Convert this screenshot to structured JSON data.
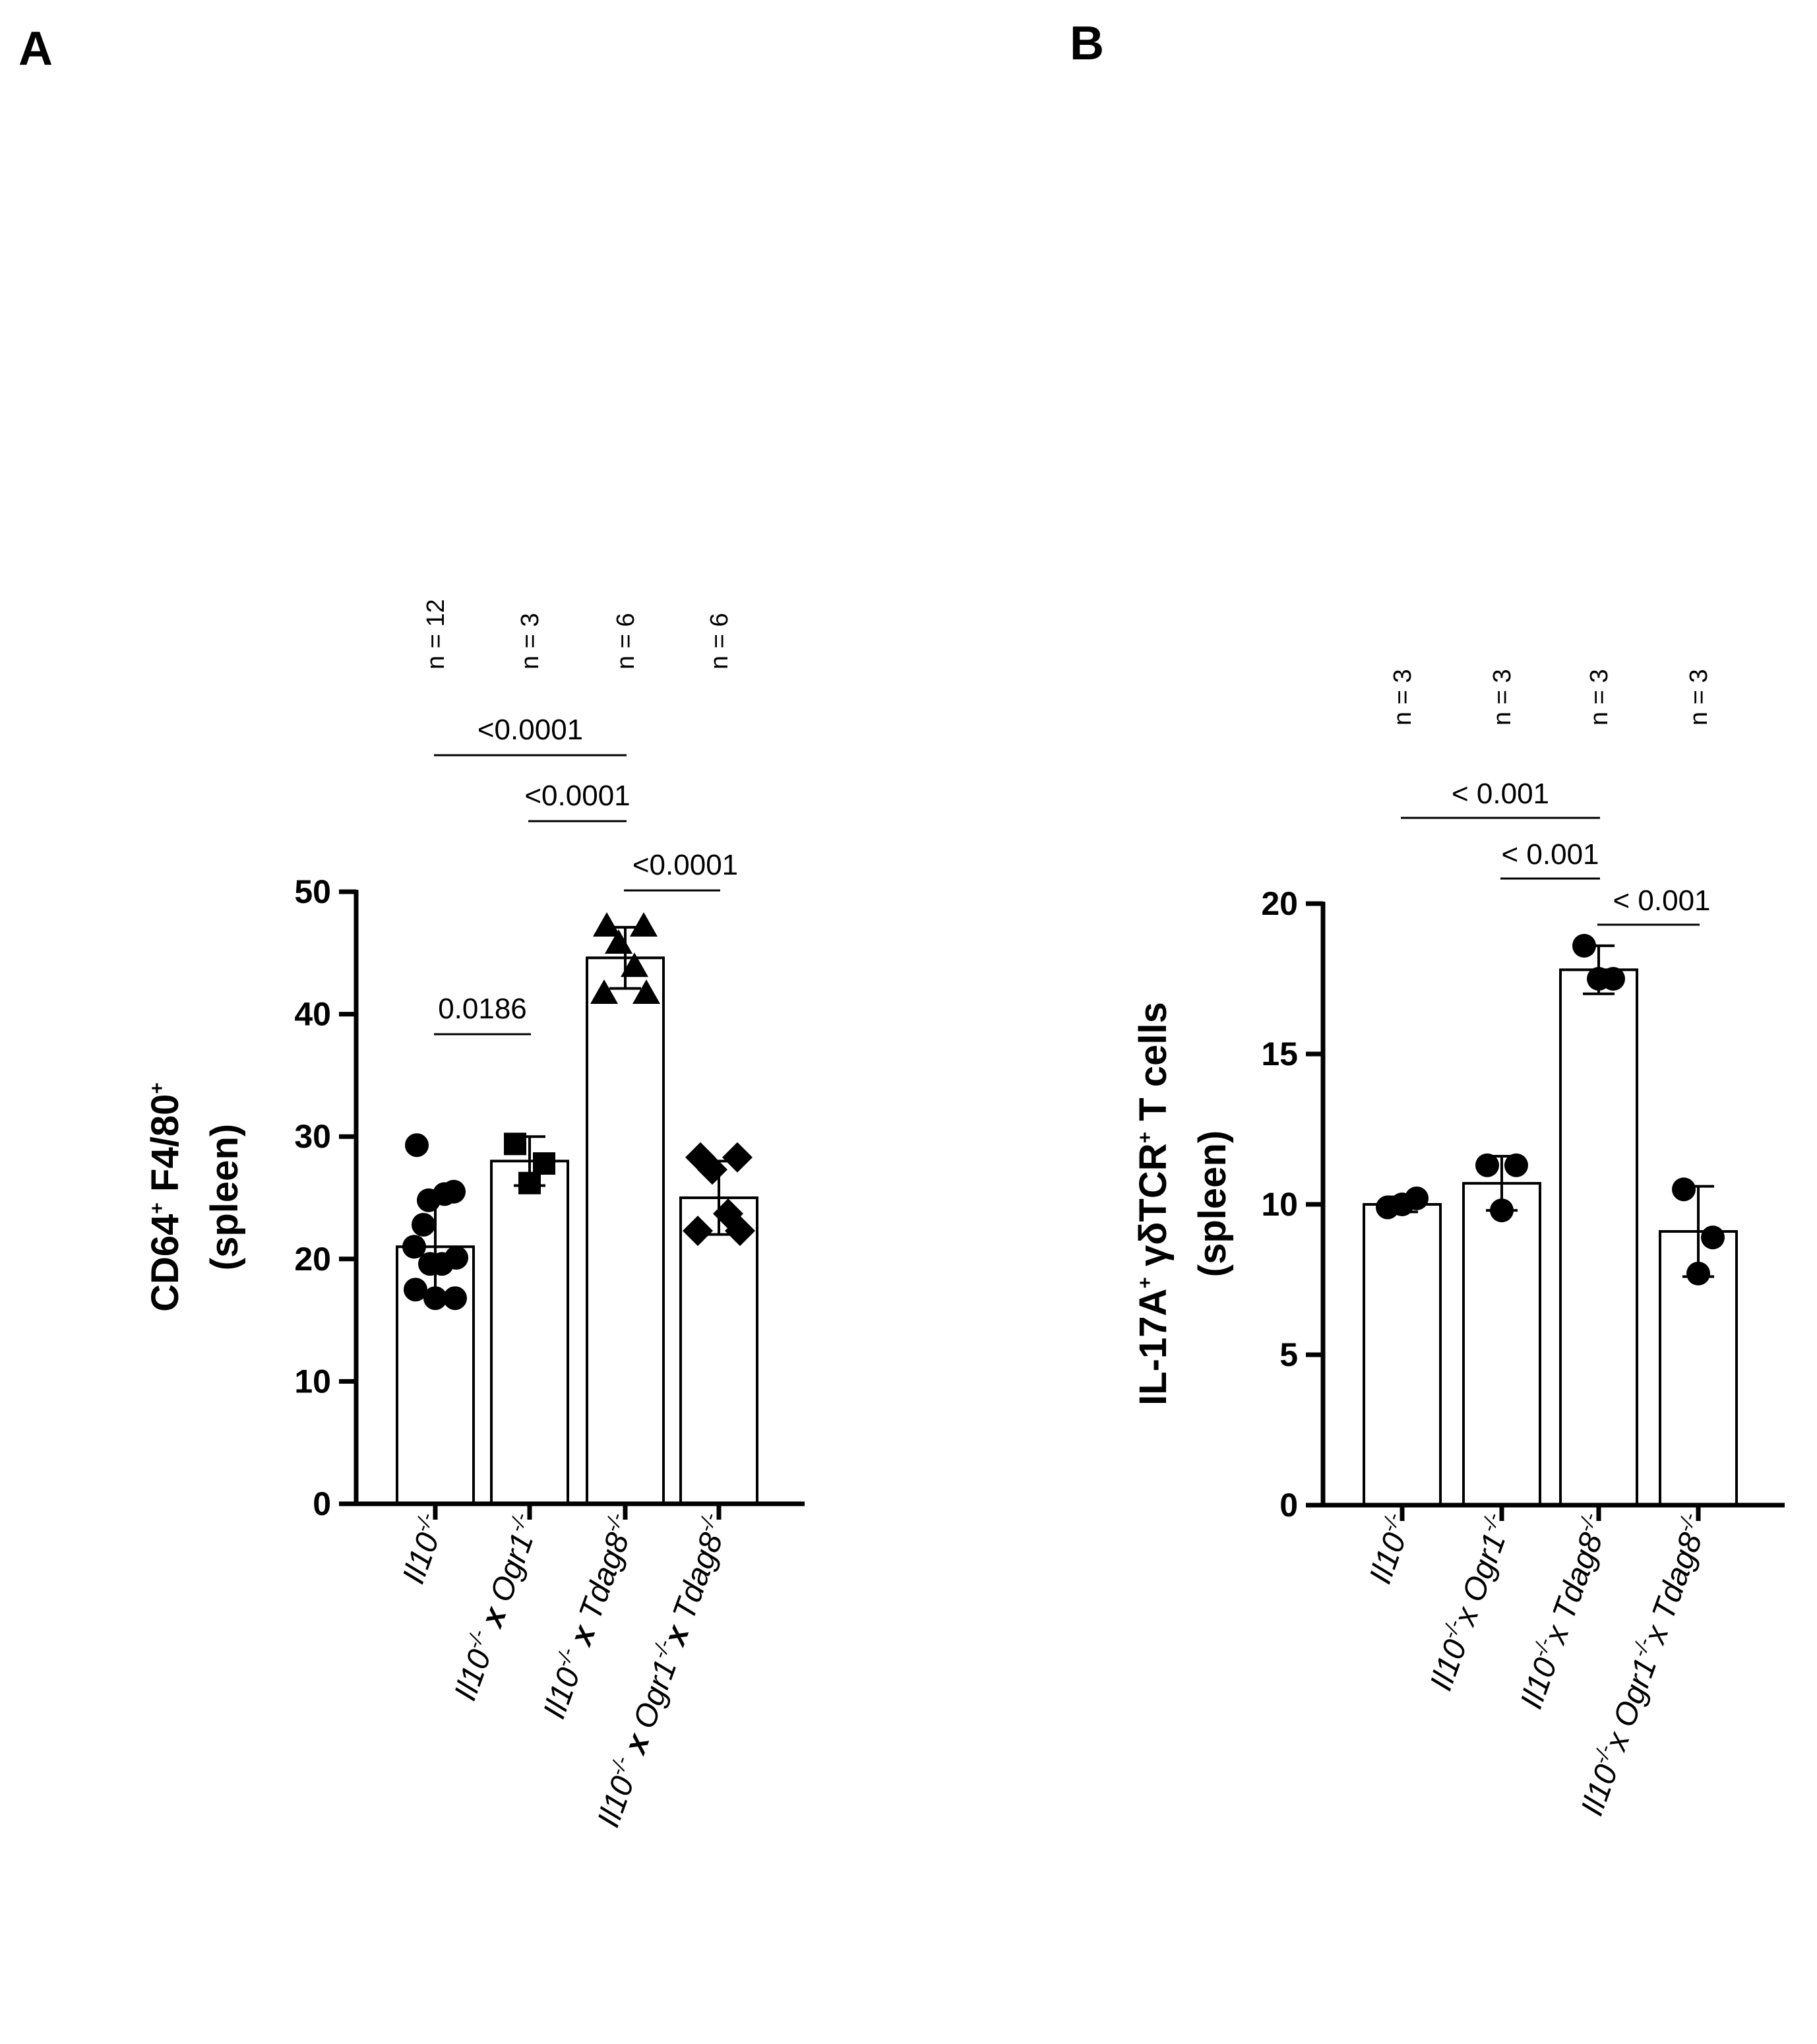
{
  "panels": [
    {
      "letter": "A",
      "chart_data": {
        "type": "bar",
        "ylabel_line1": {
          "main": "CD64",
          "sup1": "+",
          "mid": " F4/80",
          "sup2": "+"
        },
        "ylabel_line2": "(spleen)",
        "ylim": [
          0,
          50
        ],
        "yticks": [
          "0",
          "10",
          "20",
          "30",
          "40",
          "50"
        ],
        "categories": [
          {
            "parts": [
              {
                "t": "Il10"
              },
              {
                "t": "-/-",
                "sup": true
              }
            ]
          },
          {
            "parts": [
              {
                "t": "Il10"
              },
              {
                "t": "-/-",
                "sup": true
              },
              {
                "t": " x ",
                "bold": true
              },
              {
                "t": "Ogr1"
              },
              {
                "t": "-/-",
                "sup": true
              }
            ]
          },
          {
            "parts": [
              {
                "t": "Il10"
              },
              {
                "t": "-/-",
                "sup": true
              },
              {
                "t": " x ",
                "bold": true
              },
              {
                "t": "Tdag8"
              },
              {
                "t": "-/-",
                "sup": true
              }
            ]
          },
          {
            "parts": [
              {
                "t": "Il10"
              },
              {
                "t": "-/-",
                "sup": true
              },
              {
                "t": " x ",
                "bold": true
              },
              {
                "t": "Ogr1"
              },
              {
                "t": "-/-",
                "sup": true
              },
              {
                "t": "x ",
                "bold": true
              },
              {
                "t": "Tdag8"
              },
              {
                "t": "-/-",
                "sup": true
              }
            ]
          }
        ],
        "values": [
          21.0,
          28.0,
          44.6,
          25.0
        ],
        "errors": [
          4.0,
          2.0,
          2.5,
          3.0
        ],
        "markers": [
          "circle",
          "square",
          "triangle",
          "diamond"
        ],
        "points": [
          [
            29.3,
            25.5,
            24.8,
            25.3,
            21.0,
            20.1,
            19.6,
            19.6,
            17.5,
            16.8,
            16.8,
            22.8
          ],
          [
            29.4,
            27.8,
            26.2
          ],
          [
            47.2,
            47.2,
            45.8,
            43.9,
            41.7,
            41.7
          ],
          [
            28.3,
            28.3,
            27.3,
            23.7,
            22.3,
            22.3
          ]
        ],
        "n_labels": [
          "n = 12",
          "n = 3",
          "n = 6",
          "n = 6"
        ],
        "comparisons": [
          {
            "from": 0,
            "to": 2,
            "label": "<0.0001"
          },
          {
            "from": 1,
            "to": 2,
            "label": "<0.0001"
          },
          {
            "from": 2,
            "to": 3,
            "label": "<0.0001"
          },
          {
            "from": 0,
            "to": 1,
            "label": "0.0186"
          }
        ]
      }
    },
    {
      "letter": "B",
      "chart_data": {
        "type": "bar",
        "ylabel_line1": {
          "main": "IL-17A",
          "sup1": "+",
          "mid": " γδTCR",
          "sup2": "+",
          "tail": " T cells"
        },
        "ylabel_line2": "(spleen)",
        "ylim": [
          0,
          20
        ],
        "yticks": [
          "0",
          "5",
          "10",
          "15",
          "20"
        ],
        "categories": [
          {
            "parts": [
              {
                "t": "Il10"
              },
              {
                "t": "-/-",
                "sup": true
              }
            ]
          },
          {
            "parts": [
              {
                "t": "Il10"
              },
              {
                "t": "-/-",
                "sup": true
              },
              {
                "t": "x "
              },
              {
                "t": "Ogr1"
              },
              {
                "t": "-/-",
                "sup": true
              }
            ]
          },
          {
            "parts": [
              {
                "t": "Il10"
              },
              {
                "t": "-/-",
                "sup": true
              },
              {
                "t": "x "
              },
              {
                "t": "Tdag8"
              },
              {
                "t": "-/-",
                "sup": true
              }
            ]
          },
          {
            "parts": [
              {
                "t": "Il10"
              },
              {
                "t": "-/-",
                "sup": true
              },
              {
                "t": "x "
              },
              {
                "t": "Ogr1"
              },
              {
                "t": "-/-",
                "sup": true
              },
              {
                "t": "x "
              },
              {
                "t": "Tdag8"
              },
              {
                "t": "-/-",
                "sup": true
              }
            ]
          }
        ],
        "values": [
          10.0,
          10.7,
          17.8,
          9.1
        ],
        "errors": [
          0.25,
          0.9,
          0.8,
          1.5
        ],
        "markers": [
          "circle",
          "circle",
          "circle",
          "circle"
        ],
        "points": [
          [
            9.9,
            10.2,
            10.0
          ],
          [
            11.3,
            11.3,
            9.8
          ],
          [
            18.6,
            17.5,
            17.5
          ],
          [
            10.5,
            8.9,
            7.7
          ]
        ],
        "n_labels": [
          "n = 3",
          "n = 3",
          "n = 3",
          "n = 3"
        ],
        "comparisons": [
          {
            "from": 0,
            "to": 2,
            "label": "< 0.001"
          },
          {
            "from": 1,
            "to": 2,
            "label": "< 0.001"
          },
          {
            "from": 2,
            "to": 3,
            "label": "< 0.001"
          }
        ]
      }
    }
  ]
}
